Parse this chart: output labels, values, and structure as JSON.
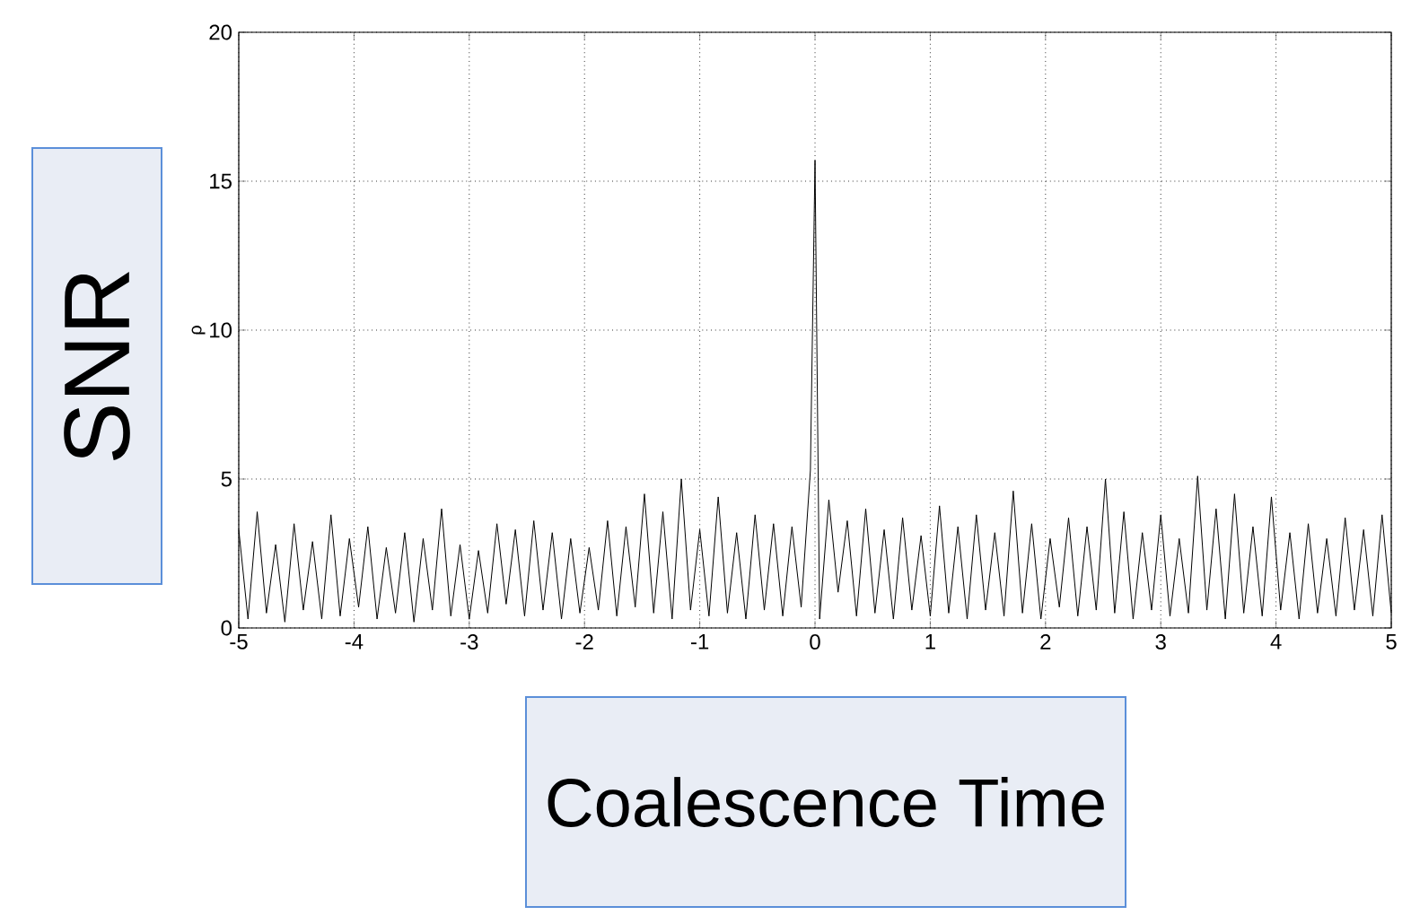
{
  "chart_data": {
    "type": "line",
    "xlabel": "Coalescence Time",
    "ylabel": "SNR",
    "annotations": [
      "ρ"
    ],
    "xlim": [
      -5,
      5
    ],
    "ylim": [
      0,
      20
    ],
    "xticks": [
      -5,
      -4,
      -3,
      -2,
      -1,
      0,
      1,
      2,
      3,
      4,
      5
    ],
    "yticks": [
      0,
      5,
      10,
      15,
      20
    ],
    "grid": true,
    "marker": "none",
    "line_style": "solid",
    "series": [
      {
        "color": "#000000",
        "x": [
          -5.0,
          -4.92,
          -4.84,
          -4.76,
          -4.68,
          -4.6,
          -4.52,
          -4.44,
          -4.36,
          -4.28,
          -4.2,
          -4.12,
          -4.04,
          -3.96,
          -3.88,
          -3.8,
          -3.72,
          -3.64,
          -3.56,
          -3.48,
          -3.4,
          -3.32,
          -3.24,
          -3.16,
          -3.08,
          -3.0,
          -2.92,
          -2.84,
          -2.76,
          -2.68,
          -2.6,
          -2.52,
          -2.44,
          -2.36,
          -2.28,
          -2.2,
          -2.12,
          -2.04,
          -1.96,
          -1.88,
          -1.8,
          -1.72,
          -1.64,
          -1.56,
          -1.48,
          -1.4,
          -1.32,
          -1.24,
          -1.16,
          -1.08,
          -1.0,
          -0.92,
          -0.84,
          -0.76,
          -0.68,
          -0.6,
          -0.52,
          -0.44,
          -0.36,
          -0.28,
          -0.2,
          -0.12,
          -0.04,
          0.0,
          0.04,
          0.12,
          0.2,
          0.28,
          0.36,
          0.44,
          0.52,
          0.6,
          0.68,
          0.76,
          0.84,
          0.92,
          1.0,
          1.08,
          1.16,
          1.24,
          1.32,
          1.4,
          1.48,
          1.56,
          1.64,
          1.72,
          1.8,
          1.88,
          1.96,
          2.04,
          2.12,
          2.2,
          2.28,
          2.36,
          2.44,
          2.52,
          2.6,
          2.68,
          2.76,
          2.84,
          2.92,
          3.0,
          3.08,
          3.16,
          3.24,
          3.32,
          3.4,
          3.48,
          3.56,
          3.64,
          3.72,
          3.8,
          3.88,
          3.96,
          4.04,
          4.12,
          4.2,
          4.28,
          4.36,
          4.44,
          4.52,
          4.6,
          4.68,
          4.76,
          4.84,
          4.92,
          5.0
        ],
        "values": [
          3.3,
          0.3,
          3.9,
          0.5,
          2.8,
          0.2,
          3.5,
          0.6,
          2.9,
          0.3,
          3.8,
          0.4,
          3.0,
          0.7,
          3.4,
          0.3,
          2.7,
          0.5,
          3.2,
          0.2,
          3.0,
          0.6,
          4.0,
          0.4,
          2.8,
          0.3,
          2.6,
          0.5,
          3.5,
          0.8,
          3.3,
          0.4,
          3.6,
          0.6,
          3.2,
          0.3,
          3.0,
          0.5,
          2.7,
          0.6,
          3.6,
          0.4,
          3.4,
          0.7,
          4.5,
          0.5,
          3.9,
          0.3,
          5.0,
          0.6,
          3.3,
          0.4,
          4.4,
          0.5,
          3.2,
          0.3,
          3.8,
          0.6,
          3.5,
          0.4,
          3.4,
          0.7,
          5.3,
          15.7,
          0.3,
          4.3,
          1.2,
          3.6,
          0.4,
          4.0,
          0.5,
          3.3,
          0.3,
          3.7,
          0.6,
          3.1,
          0.4,
          4.1,
          0.5,
          3.4,
          0.3,
          3.8,
          0.6,
          3.2,
          0.4,
          4.6,
          0.5,
          3.5,
          0.3,
          3.0,
          0.7,
          3.7,
          0.4,
          3.4,
          0.6,
          5.0,
          0.5,
          3.9,
          0.3,
          3.2,
          0.6,
          3.8,
          0.4,
          3.0,
          0.5,
          5.1,
          0.6,
          4.0,
          0.3,
          4.5,
          0.5,
          3.4,
          0.4,
          4.4,
          0.6,
          3.2,
          0.3,
          3.5,
          0.5,
          3.0,
          0.4,
          3.7,
          0.6,
          3.3,
          0.4,
          3.8,
          0.5
        ]
      }
    ]
  }
}
